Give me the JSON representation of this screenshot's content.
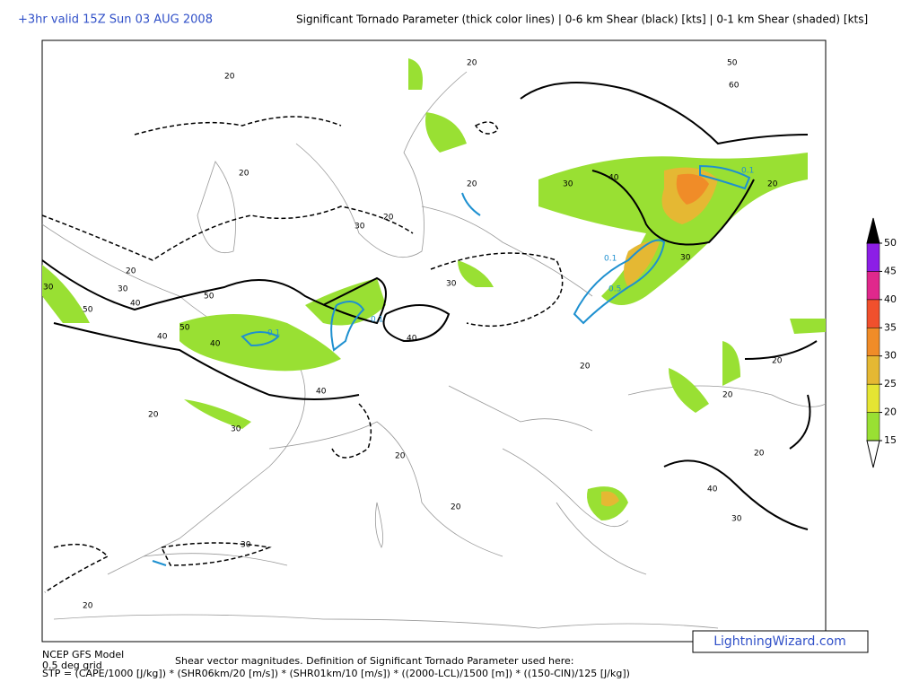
{
  "header": {
    "valid_time": "+3hr valid 15Z Sun 03 AUG 2008",
    "title": "Significant Tornado Parameter (thick color lines) | 0-6 km Shear (black) [kts] | 0-1 km Shear (shaded) [kts]"
  },
  "map": {
    "contour_labels": [
      "20",
      "50",
      "60",
      "20",
      "20",
      "20",
      "20",
      "30",
      "50",
      "30",
      "40",
      "40",
      "50",
      "40",
      "30",
      "20",
      "30",
      "40",
      "50",
      "40",
      "30",
      "20",
      "30",
      "20",
      "40",
      "20",
      "30",
      "20",
      "20",
      "20",
      "30",
      "40",
      "20",
      "20",
      "30",
      "20"
    ],
    "stp_labels": [
      "0.1",
      "0.1",
      "0.1",
      "0.1",
      "0.5"
    ]
  },
  "colorbar": {
    "levels": [
      15,
      20,
      25,
      30,
      35,
      40,
      45,
      50
    ],
    "colors": [
      "#99e033",
      "#e5e533",
      "#e5b833",
      "#f08c28",
      "#f0502d",
      "#e0288c",
      "#8c1ee6"
    ],
    "over_color": "#000000",
    "under_color": "#ffffff"
  },
  "footer": {
    "model": "NCEP GFS Model",
    "grid": "0.5 deg grid",
    "note": "Shear vector magnitudes. Definition of Significant Tornado Parameter used here:",
    "formula": "STP = (CAPE/1000 [J/kg]) * (SHR06km/20 [m/s]) * (SHR01km/10 [m/s]) * ((2000-LCL)/1500 [m]) * ((150-CIN)/125 [J/kg])",
    "logo": "LightningWizard.com"
  }
}
